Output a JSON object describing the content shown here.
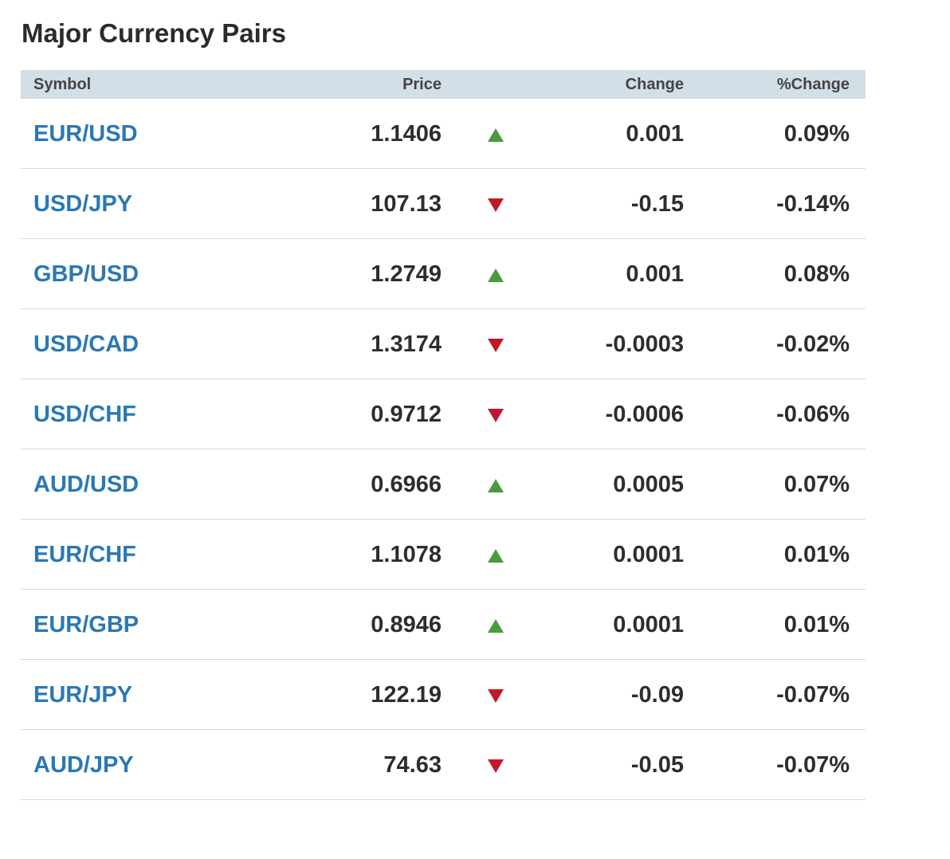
{
  "title": "Major Currency Pairs",
  "colors": {
    "link": "#2a78b4",
    "up": "#4a9a3f",
    "down": "#c0182a",
    "header_bg": "#d2dfe6"
  },
  "columns": {
    "symbol": "Symbol",
    "price": "Price",
    "change": "Change",
    "pct_change": "%Change"
  },
  "rows": [
    {
      "symbol": "EUR/USD",
      "price": "1.1406",
      "direction": "up",
      "icon": "triangle-up-icon",
      "change": "0.001",
      "pct_change": "0.09%"
    },
    {
      "symbol": "USD/JPY",
      "price": "107.13",
      "direction": "down",
      "icon": "triangle-down-icon",
      "change": "-0.15",
      "pct_change": "-0.14%"
    },
    {
      "symbol": "GBP/USD",
      "price": "1.2749",
      "direction": "up",
      "icon": "triangle-up-icon",
      "change": "0.001",
      "pct_change": "0.08%"
    },
    {
      "symbol": "USD/CAD",
      "price": "1.3174",
      "direction": "down",
      "icon": "triangle-down-icon",
      "change": "-0.0003",
      "pct_change": "-0.02%"
    },
    {
      "symbol": "USD/CHF",
      "price": "0.9712",
      "direction": "down",
      "icon": "triangle-down-icon",
      "change": "-0.0006",
      "pct_change": "-0.06%"
    },
    {
      "symbol": "AUD/USD",
      "price": "0.6966",
      "direction": "up",
      "icon": "triangle-up-icon",
      "change": "0.0005",
      "pct_change": "0.07%"
    },
    {
      "symbol": "EUR/CHF",
      "price": "1.1078",
      "direction": "up",
      "icon": "triangle-up-icon",
      "change": "0.0001",
      "pct_change": "0.01%"
    },
    {
      "symbol": "EUR/GBP",
      "price": "0.8946",
      "direction": "up",
      "icon": "triangle-up-icon",
      "change": "0.0001",
      "pct_change": "0.01%"
    },
    {
      "symbol": "EUR/JPY",
      "price": "122.19",
      "direction": "down",
      "icon": "triangle-down-icon",
      "change": "-0.09",
      "pct_change": "-0.07%"
    },
    {
      "symbol": "AUD/JPY",
      "price": "74.63",
      "direction": "down",
      "icon": "triangle-down-icon",
      "change": "-0.05",
      "pct_change": "-0.07%"
    }
  ]
}
